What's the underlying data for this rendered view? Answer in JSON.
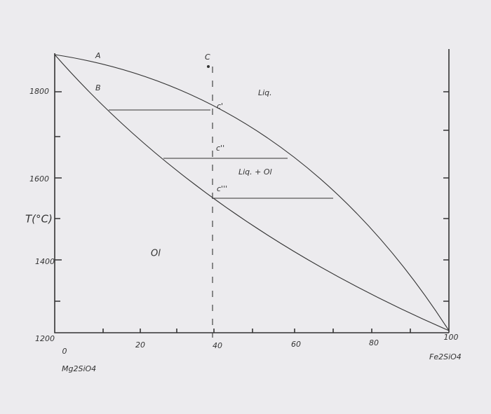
{
  "y_axis": {
    "label": "T(°C)",
    "ticks": [
      "1800",
      "1600",
      "1400",
      "1200"
    ]
  },
  "x_axis": {
    "ticks": [
      "0",
      "20",
      "40",
      "60",
      "80",
      "100"
    ],
    "left_end": "Mg2SiO4",
    "right_end": "Fe2SiO4"
  },
  "points": {
    "a": "A",
    "b": "B",
    "c": "C",
    "c1": "c'",
    "c2": "c''",
    "c3": "c'''"
  },
  "regions": {
    "liquid": "Liq.",
    "mixed": "Liq. + Ol",
    "solid": "Ol"
  }
}
